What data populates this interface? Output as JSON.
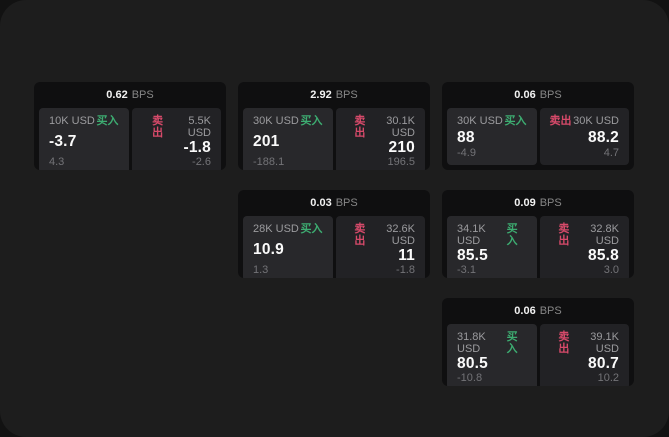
{
  "labels": {
    "bps": "BPS",
    "buy": "买入",
    "sell": "卖出"
  },
  "colors": {
    "page-bg": "#1d1d1d",
    "card-bg": "#0f0f10",
    "tile-buy-bg": "#28282b",
    "tile-sell-bg": "#222225",
    "buy-color": "#3dac71",
    "sell-color": "#d74a6a"
  },
  "cards": [
    {
      "bps": "0.62",
      "buy": {
        "amount": "10K USD",
        "price": "-3.7",
        "delta": "4.3"
      },
      "sell": {
        "amount": "5.5K USD",
        "price": "-1.8",
        "delta": "-2.6"
      }
    },
    {
      "bps": "2.92",
      "buy": {
        "amount": "30K USD",
        "price": "201",
        "delta": "-188.1"
      },
      "sell": {
        "amount": "30.1K USD",
        "price": "210",
        "delta": "196.5"
      }
    },
    {
      "bps": "0.06",
      "buy": {
        "amount": "30K USD",
        "price": "88",
        "delta": "-4.9"
      },
      "sell": {
        "amount": "30K USD",
        "price": "88.2",
        "delta": "4.7"
      }
    },
    {
      "bps": "0.03",
      "buy": {
        "amount": "28K USD",
        "price": "10.9",
        "delta": "1.3"
      },
      "sell": {
        "amount": "32.6K USD",
        "price": "11",
        "delta": "-1.8"
      }
    },
    {
      "bps": "0.09",
      "buy": {
        "amount": "34.1K USD",
        "price": "85.5",
        "delta": "-3.1"
      },
      "sell": {
        "amount": "32.8K USD",
        "price": "85.8",
        "delta": "3.0"
      }
    },
    {
      "bps": "0.06",
      "buy": {
        "amount": "31.8K USD",
        "price": "80.5",
        "delta": "-10.8"
      },
      "sell": {
        "amount": "39.1K USD",
        "price": "80.7",
        "delta": "10.2"
      }
    }
  ]
}
